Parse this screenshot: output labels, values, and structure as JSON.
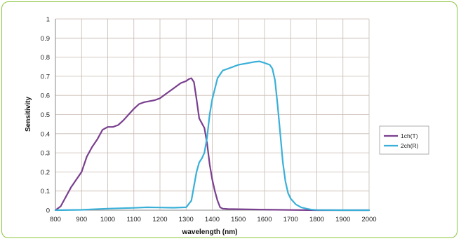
{
  "chart_data": {
    "type": "line",
    "xlabel": "wavelength (nm)",
    "ylabel": "Sensitivity",
    "xlim": [
      800,
      2000
    ],
    "ylim": [
      0,
      1
    ],
    "x_ticks": [
      800,
      900,
      1000,
      1100,
      1200,
      1300,
      1400,
      1500,
      1600,
      1700,
      1800,
      1900,
      2000
    ],
    "y_ticks": [
      0,
      0.1,
      0.2,
      0.3,
      0.4,
      0.5,
      0.6,
      0.7,
      0.8,
      0.9,
      1
    ],
    "grid": true,
    "legend_position": "right",
    "series": [
      {
        "name": "1ch(T)",
        "color": "#7a3f8f",
        "x": [
          800,
          820,
          840,
          860,
          880,
          900,
          920,
          940,
          960,
          980,
          1000,
          1020,
          1040,
          1060,
          1080,
          1100,
          1120,
          1140,
          1160,
          1180,
          1200,
          1220,
          1240,
          1260,
          1280,
          1300,
          1310,
          1320,
          1330,
          1340,
          1350,
          1360,
          1370,
          1380,
          1390,
          1400,
          1410,
          1420,
          1430,
          1440,
          1460,
          1500,
          1600,
          1700,
          1800,
          1900,
          2000
        ],
        "values": [
          0.0,
          0.02,
          0.07,
          0.12,
          0.16,
          0.2,
          0.28,
          0.33,
          0.37,
          0.42,
          0.435,
          0.435,
          0.445,
          0.47,
          0.5,
          0.53,
          0.555,
          0.565,
          0.57,
          0.575,
          0.585,
          0.605,
          0.625,
          0.645,
          0.665,
          0.675,
          0.685,
          0.69,
          0.67,
          0.58,
          0.48,
          0.455,
          0.43,
          0.35,
          0.24,
          0.16,
          0.1,
          0.05,
          0.015,
          0.008,
          0.006,
          0.005,
          0.003,
          0.001,
          0.0,
          0.0,
          0.0
        ]
      },
      {
        "name": "2ch(R)",
        "color": "#3ab0d8",
        "x": [
          800,
          900,
          1000,
          1100,
          1150,
          1200,
          1250,
          1300,
          1320,
          1340,
          1350,
          1360,
          1370,
          1380,
          1390,
          1400,
          1420,
          1440,
          1460,
          1480,
          1500,
          1520,
          1540,
          1560,
          1580,
          1600,
          1620,
          1630,
          1640,
          1650,
          1660,
          1670,
          1680,
          1690,
          1700,
          1720,
          1740,
          1760,
          1780,
          1800,
          1900,
          2000
        ],
        "values": [
          0.0,
          0.002,
          0.008,
          0.012,
          0.015,
          0.014,
          0.013,
          0.015,
          0.05,
          0.2,
          0.25,
          0.27,
          0.3,
          0.38,
          0.5,
          0.58,
          0.69,
          0.73,
          0.74,
          0.75,
          0.76,
          0.765,
          0.77,
          0.775,
          0.778,
          0.77,
          0.76,
          0.74,
          0.68,
          0.55,
          0.4,
          0.25,
          0.15,
          0.09,
          0.06,
          0.03,
          0.015,
          0.008,
          0.003,
          0.001,
          0.0,
          0.0
        ]
      }
    ]
  }
}
